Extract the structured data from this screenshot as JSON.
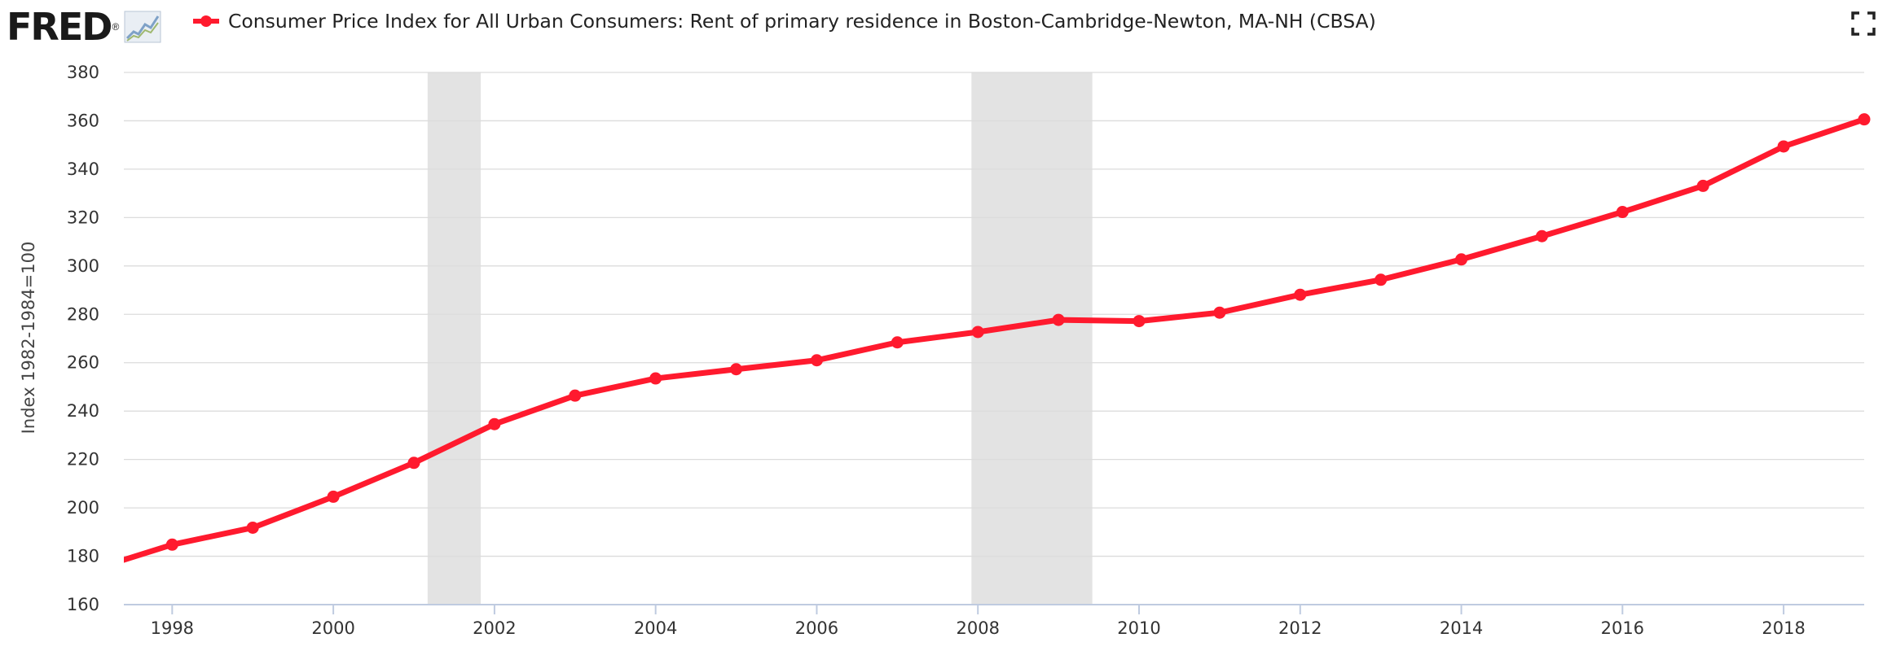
{
  "header": {
    "logo_text": "FRED",
    "logo_mark": "®",
    "logo_icon": "line-chart-icon",
    "fullscreen_icon": "fullscreen-icon"
  },
  "colors": {
    "series": "#ff1a2e",
    "recession": "#e3e3e3",
    "grid": "#dcdcdc",
    "axis": "#bfcbe0",
    "text": "#333333"
  },
  "chart_data": {
    "type": "line",
    "title": "",
    "xlabel": "",
    "ylabel": "Index 1982-1984=100",
    "ylim": [
      160,
      380
    ],
    "yticks": [
      160,
      180,
      200,
      220,
      240,
      260,
      280,
      300,
      320,
      340,
      360,
      380
    ],
    "xlim": [
      1997.4,
      2019.0
    ],
    "xticks": [
      1998,
      2000,
      2002,
      2004,
      2006,
      2008,
      2010,
      2012,
      2014,
      2016,
      2018
    ],
    "grid": true,
    "legend": "top-left",
    "recessions": [
      [
        2001.17,
        2001.83
      ],
      [
        2007.92,
        2009.42
      ]
    ],
    "series": [
      {
        "name": "Consumer Price Index for All Urban Consumers: Rent of primary residence in Boston-Cambridge-Newton, MA-NH (CBSA)",
        "x": [
          1997,
          1998,
          1999,
          2000,
          2001,
          2002,
          2003,
          2004,
          2005,
          2006,
          2007,
          2008,
          2009,
          2010,
          2011,
          2012,
          2013,
          2014,
          2015,
          2016,
          2017,
          2018,
          2019
        ],
        "values": [
          174.3,
          184.8,
          191.8,
          204.6,
          218.6,
          234.6,
          246.4,
          253.5,
          257.3,
          261.0,
          268.4,
          272.7,
          277.7,
          277.2,
          280.7,
          288.1,
          294.3,
          302.7,
          312.3,
          322.3,
          333.1,
          349.4,
          360.6
        ]
      }
    ]
  }
}
